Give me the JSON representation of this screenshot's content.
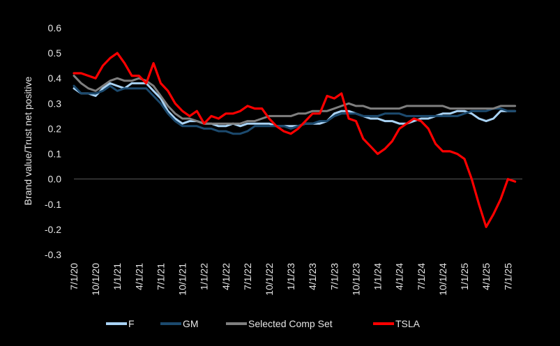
{
  "chart_data": {
    "type": "line",
    "title": "",
    "xlabel": "",
    "ylabel": "Brand value/Trust net positive",
    "ylim": [
      -0.3,
      0.6
    ],
    "yticks": [
      "0.6",
      "0.5",
      "0.4",
      "0.3",
      "0.2",
      "0.1",
      "0.0",
      "-0.1",
      "-0.2",
      "-0.3"
    ],
    "y_tick_values": [
      0.6,
      0.5,
      0.4,
      0.3,
      0.2,
      0.1,
      0.0,
      -0.1,
      -0.2,
      -0.3
    ],
    "x_ticks": [
      "7/1/20",
      "10/1/20",
      "1/1/21",
      "4/1/21",
      "7/1/21",
      "10/1/21",
      "1/1/22",
      "4/1/22",
      "7/1/22",
      "10/1/22",
      "1/1/23",
      "4/1/23",
      "7/1/23",
      "10/1/23",
      "1/1/24",
      "4/1/24",
      "7/1/24",
      "10/1/24",
      "1/1/25",
      "4/1/25",
      "7/1/25"
    ],
    "x_tick_index": [
      0,
      3,
      6,
      9,
      12,
      15,
      18,
      21,
      24,
      27,
      30,
      33,
      36,
      39,
      42,
      45,
      48,
      51,
      54,
      57,
      60
    ],
    "x_index_range": [
      0,
      62
    ],
    "grid": false,
    "zero_line": true,
    "legend_position": "bottom",
    "series": [
      {
        "name": "F",
        "color": "#a9d3f5",
        "values": [
          0.36,
          0.34,
          0.34,
          0.33,
          0.36,
          0.38,
          0.37,
          0.36,
          0.38,
          0.38,
          0.38,
          0.35,
          0.32,
          0.27,
          0.24,
          0.22,
          0.23,
          0.23,
          0.22,
          0.22,
          0.21,
          0.21,
          0.22,
          0.21,
          0.22,
          0.22,
          0.22,
          0.22,
          0.21,
          0.21,
          0.21,
          0.21,
          0.22,
          0.22,
          0.22,
          0.23,
          0.26,
          0.27,
          0.27,
          0.26,
          0.25,
          0.24,
          0.24,
          0.23,
          0.23,
          0.22,
          0.22,
          0.23,
          0.24,
          0.24,
          0.25,
          0.26,
          0.26,
          0.27,
          0.27,
          0.26,
          0.24,
          0.23,
          0.24,
          0.27,
          0.27,
          0.27
        ]
      },
      {
        "name": "GM",
        "color": "#1c4a6e",
        "values": [
          0.37,
          0.34,
          0.34,
          0.34,
          0.35,
          0.37,
          0.35,
          0.36,
          0.36,
          0.36,
          0.36,
          0.33,
          0.3,
          0.26,
          0.23,
          0.21,
          0.21,
          0.21,
          0.2,
          0.2,
          0.19,
          0.19,
          0.18,
          0.18,
          0.19,
          0.21,
          0.21,
          0.21,
          0.21,
          0.21,
          0.2,
          0.21,
          0.22,
          0.22,
          0.23,
          0.23,
          0.25,
          0.26,
          0.26,
          0.26,
          0.25,
          0.25,
          0.25,
          0.26,
          0.26,
          0.26,
          0.25,
          0.25,
          0.25,
          0.25,
          0.25,
          0.25,
          0.25,
          0.25,
          0.26,
          0.27,
          0.27,
          0.27,
          0.28,
          0.28,
          0.27,
          0.27
        ]
      },
      {
        "name": "Selected Comp Set",
        "color": "#7f7f7f",
        "values": [
          0.41,
          0.38,
          0.36,
          0.35,
          0.37,
          0.39,
          0.4,
          0.39,
          0.39,
          0.4,
          0.39,
          0.37,
          0.33,
          0.29,
          0.26,
          0.24,
          0.24,
          0.23,
          0.22,
          0.22,
          0.22,
          0.22,
          0.22,
          0.22,
          0.23,
          0.23,
          0.24,
          0.25,
          0.25,
          0.25,
          0.25,
          0.26,
          0.26,
          0.27,
          0.27,
          0.27,
          0.28,
          0.29,
          0.3,
          0.29,
          0.29,
          0.28,
          0.28,
          0.28,
          0.28,
          0.28,
          0.29,
          0.29,
          0.29,
          0.29,
          0.29,
          0.29,
          0.28,
          0.28,
          0.28,
          0.28,
          0.28,
          0.28,
          0.28,
          0.29,
          0.29,
          0.29
        ]
      },
      {
        "name": "TSLA",
        "color": "#ff0000",
        "values": [
          0.42,
          0.42,
          0.41,
          0.4,
          0.45,
          0.48,
          0.5,
          0.46,
          0.41,
          0.41,
          0.38,
          0.46,
          0.38,
          0.35,
          0.3,
          0.27,
          0.25,
          0.27,
          0.22,
          0.25,
          0.24,
          0.26,
          0.26,
          0.27,
          0.29,
          0.28,
          0.28,
          0.24,
          0.21,
          0.19,
          0.18,
          0.2,
          0.23,
          0.26,
          0.26,
          0.33,
          0.32,
          0.34,
          0.24,
          0.23,
          0.16,
          0.13,
          0.1,
          0.12,
          0.15,
          0.2,
          0.22,
          0.24,
          0.23,
          0.2,
          0.14,
          0.11,
          0.11,
          0.1,
          0.08,
          0.0,
          -0.1,
          -0.19,
          -0.14,
          -0.08,
          0.0,
          -0.01
        ]
      }
    ]
  }
}
